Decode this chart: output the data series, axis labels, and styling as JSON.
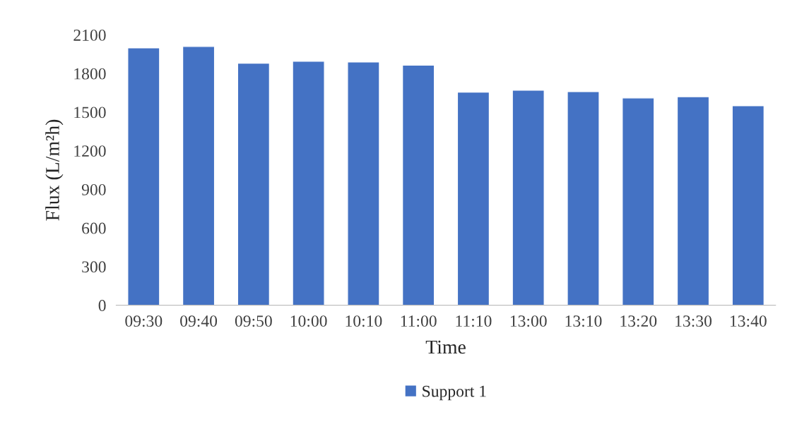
{
  "chart_data": {
    "type": "bar",
    "xlabel": "Time",
    "ylabel": "Flux (L/m²h)",
    "categories": [
      "09:30",
      "09:40",
      "09:50",
      "10:00",
      "10:10",
      "11:00",
      "11:10",
      "13:00",
      "13:10",
      "13:20",
      "13:30",
      "13:40"
    ],
    "series": [
      {
        "name": "Support 1",
        "color": "#4472c4",
        "values": [
          2000,
          2010,
          1880,
          1895,
          1890,
          1865,
          1655,
          1670,
          1660,
          1610,
          1620,
          1550
        ]
      }
    ],
    "ylim": [
      0,
      2100
    ],
    "yticks": [
      0,
      300,
      600,
      900,
      1200,
      1500,
      1800,
      2100
    ],
    "grid": false,
    "legend": "bottom"
  }
}
